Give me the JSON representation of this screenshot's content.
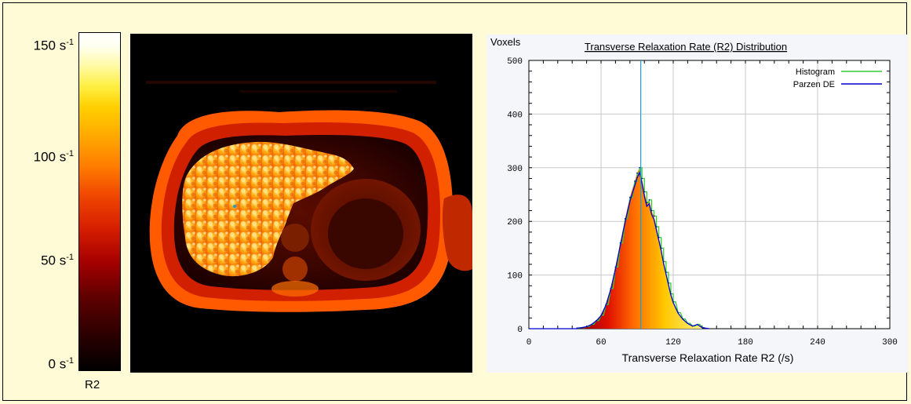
{
  "colorbar": {
    "title": "R2",
    "ticks": [
      {
        "value": 150,
        "base": "150 s",
        "exp": "-1"
      },
      {
        "value": 100,
        "base": "100 s",
        "exp": "-1"
      },
      {
        "value": 50,
        "base": "50 s",
        "exp": "-1"
      },
      {
        "value": 0,
        "base": "0 s",
        "exp": "-1"
      }
    ],
    "range": [
      0,
      150
    ]
  },
  "chart_data": {
    "type": "bar",
    "title": "Transverse Relaxation Rate (R2) Distribution",
    "xlabel": "Transverse Relaxation Rate R2 (/s)",
    "ylabel": "Voxels",
    "xlim": [
      0,
      300
    ],
    "ylim": [
      0,
      500
    ],
    "xticks": [
      0,
      60,
      120,
      180,
      240,
      300
    ],
    "yticks": [
      0,
      100,
      200,
      300,
      400,
      500
    ],
    "grid": true,
    "legend_position": "top-right",
    "marker_line_x": 93,
    "series": [
      {
        "name": "Histogram",
        "color": "#33cc33"
      },
      {
        "name": "Parzen DE",
        "color": "#0000cc"
      }
    ],
    "x": [
      40,
      44,
      48,
      52,
      56,
      60,
      64,
      68,
      72,
      76,
      80,
      84,
      88,
      90,
      92,
      94,
      96,
      98,
      100,
      102,
      104,
      106,
      108,
      110,
      112,
      114,
      116,
      118,
      120,
      124,
      128,
      132,
      136,
      140,
      144
    ],
    "values": [
      1,
      2,
      4,
      8,
      15,
      25,
      45,
      75,
      115,
      160,
      205,
      245,
      275,
      290,
      300,
      280,
      255,
      235,
      240,
      220,
      210,
      190,
      170,
      150,
      125,
      105,
      85,
      65,
      50,
      30,
      18,
      10,
      5,
      8,
      2
    ]
  },
  "mri": {
    "label": "liver axial R2 map"
  },
  "colors": {
    "background": "#fffbd7",
    "marker_line": "#1a9fd6"
  }
}
